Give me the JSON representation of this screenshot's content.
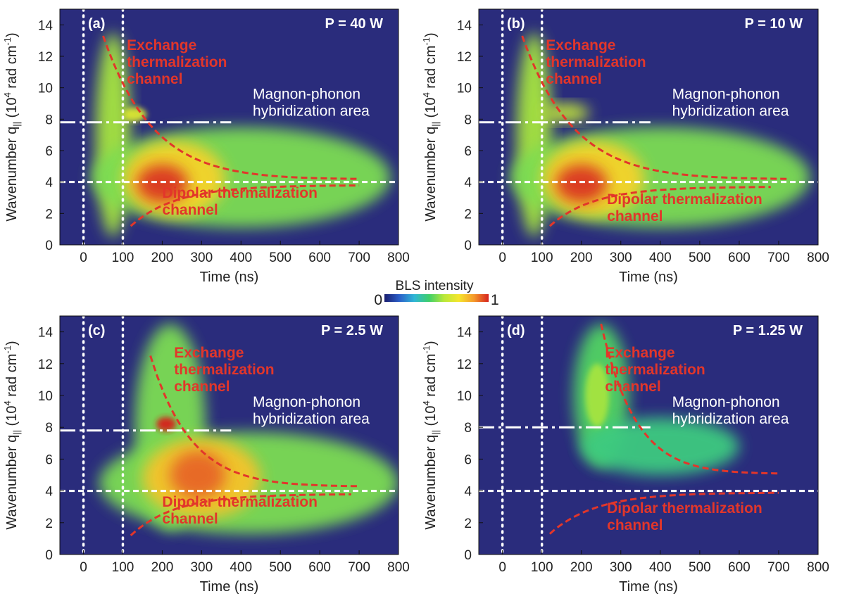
{
  "chart_data": {
    "type": "heatmap",
    "colorbar": {
      "title": "BLS intensity",
      "min_label": "0",
      "max_label": "1",
      "range": [
        0,
        1
      ],
      "colors": [
        "#1a1d6e",
        "#2b5fc9",
        "#2fb6d6",
        "#3fcf6a",
        "#b8e83a",
        "#f5e62c",
        "#f59a2a",
        "#d6231e"
      ]
    },
    "shared_axes": {
      "xlabel": "Time (ns)",
      "ylabel_parts": [
        "Wavenumber q",
        "||",
        " (10",
        "4",
        " rad cm",
        "-1",
        ")"
      ],
      "xlim": [
        -60,
        800
      ],
      "ylim": [
        0,
        15
      ],
      "xticks": [
        0,
        100,
        200,
        300,
        400,
        500,
        600,
        700,
        800
      ],
      "yticks": [
        0,
        2,
        4,
        6,
        8,
        10,
        12,
        14
      ],
      "background": "#2a2c7c"
    },
    "panels": [
      {
        "id": "a",
        "letter": "(a)",
        "power": "P = 40 W",
        "exchange_label": [
          "Exchange",
          "thermalization",
          "channel"
        ],
        "dipolar_label": [
          "Dipolar thermalization",
          "channel"
        ],
        "hybrid_label": [
          "Magnon-phonon",
          "hybridization area"
        ],
        "hybridization_q": 7.8,
        "dipolar_q": 4.0,
        "markers_t": [
          0,
          100
        ],
        "exchange_curve": {
          "t_start": 50,
          "t_end": 700,
          "q_start": 13.3,
          "q_end": 4.2
        },
        "dipolar_curve": {
          "t_start": 120,
          "t_end": 700,
          "q_start": 1.2,
          "q_end": 3.8
        },
        "blobs": [
          {
            "t": 75,
            "q": 7,
            "rt": 45,
            "rq": 6.5,
            "i": 0.55
          },
          {
            "t": 400,
            "q": 4.3,
            "rt": 380,
            "rq": 3.2,
            "i": 0.5
          },
          {
            "t": 230,
            "q": 4.2,
            "rt": 130,
            "rq": 2.4,
            "i": 0.75
          },
          {
            "t": 200,
            "q": 3.9,
            "rt": 65,
            "rq": 1.2,
            "i": 0.98
          },
          {
            "t": 130,
            "q": 8.3,
            "rt": 30,
            "rq": 0.45,
            "i": 0.65
          }
        ]
      },
      {
        "id": "b",
        "letter": "(b)",
        "power": "P = 10 W",
        "exchange_label": [
          "Exchange",
          "thermalization",
          "channel"
        ],
        "dipolar_label": [
          "Dipolar thermalization",
          "channel"
        ],
        "hybrid_label": [
          "Magnon-phonon",
          "hybridization area"
        ],
        "hybridization_q": 7.8,
        "dipolar_q": 4.0,
        "markers_t": [
          0,
          100
        ],
        "exchange_curve": {
          "t_start": 50,
          "t_end": 720,
          "q_start": 13.3,
          "q_end": 4.2
        },
        "dipolar_curve": {
          "t_start": 120,
          "t_end": 680,
          "q_start": 1.2,
          "q_end": 3.7
        },
        "blobs": [
          {
            "t": 80,
            "q": 7,
            "rt": 45,
            "rq": 6.5,
            "i": 0.55
          },
          {
            "t": 400,
            "q": 4.3,
            "rt": 380,
            "rq": 3.2,
            "i": 0.5
          },
          {
            "t": 230,
            "q": 4.2,
            "rt": 130,
            "rq": 2.4,
            "i": 0.75
          },
          {
            "t": 200,
            "q": 3.9,
            "rt": 65,
            "rq": 1.2,
            "i": 0.98
          },
          {
            "t": 160,
            "q": 8.4,
            "rt": 60,
            "rq": 0.6,
            "i": 0.6
          }
        ]
      },
      {
        "id": "c",
        "letter": "(c)",
        "power": "P = 2.5 W",
        "exchange_label": [
          "Exchange",
          "thermalization",
          "channel"
        ],
        "dipolar_label": [
          "Dipolar thermalization",
          "channel"
        ],
        "hybrid_label": [
          "Magnon-phonon",
          "hybridization area"
        ],
        "hybridization_q": 7.8,
        "dipolar_q": 4.0,
        "markers_t": [
          0,
          100
        ],
        "exchange_curve": {
          "t_start": 170,
          "t_end": 700,
          "q_start": 12.5,
          "q_end": 4.3
        },
        "dipolar_curve": {
          "t_start": 120,
          "t_end": 680,
          "q_start": 1.2,
          "q_end": 3.8
        },
        "blobs": [
          {
            "t": 220,
            "q": 8,
            "rt": 90,
            "rq": 6.5,
            "i": 0.5
          },
          {
            "t": 420,
            "q": 4.5,
            "rt": 380,
            "rq": 3.2,
            "i": 0.5
          },
          {
            "t": 300,
            "q": 4.8,
            "rt": 150,
            "rq": 2.5,
            "i": 0.78
          },
          {
            "t": 290,
            "q": 5,
            "rt": 70,
            "rq": 1.5,
            "i": 0.92
          },
          {
            "t": 210,
            "q": 8.2,
            "rt": 25,
            "rq": 0.45,
            "i": 1.0
          }
        ]
      },
      {
        "id": "d",
        "letter": "(d)",
        "power": "P = 1.25 W",
        "exchange_label": [
          "Exchange",
          "thermalization",
          "channel"
        ],
        "dipolar_label": [
          "Dipolar thermalization",
          "channel"
        ],
        "hybrid_label": [
          "Magnon-phonon",
          "hybridization area"
        ],
        "hybridization_q": 8.0,
        "dipolar_q": 4.0,
        "markers_t": [
          0,
          100
        ],
        "exchange_curve": {
          "t_start": 250,
          "t_end": 700,
          "q_start": 14.5,
          "q_end": 5.1
        },
        "dipolar_curve": {
          "t_start": 120,
          "t_end": 700,
          "q_start": 1.3,
          "q_end": 3.9
        },
        "blobs": [
          {
            "t": 250,
            "q": 10,
            "rt": 70,
            "rq": 4.5,
            "i": 0.45
          },
          {
            "t": 400,
            "q": 6.8,
            "rt": 200,
            "rq": 1.8,
            "i": 0.4
          },
          {
            "t": 240,
            "q": 10,
            "rt": 30,
            "rq": 2.0,
            "i": 0.55
          }
        ]
      }
    ]
  }
}
